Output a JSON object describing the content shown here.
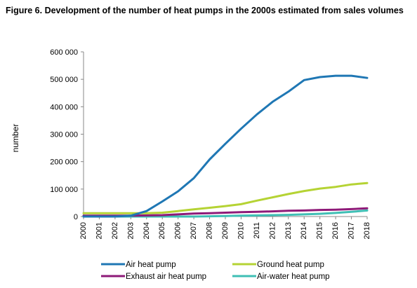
{
  "chart_data": {
    "type": "line",
    "title": "Figure 6. Development of the number of heat pumps in the 2000s estimated from sales volumes",
    "xlabel": "",
    "ylabel": "number",
    "ylim": [
      0,
      600000
    ],
    "yticks": [
      0,
      100000,
      200000,
      300000,
      400000,
      500000,
      600000
    ],
    "ytick_labels": [
      "0",
      "100 000",
      "200 000",
      "300 000",
      "400 000",
      "500 000",
      "600 000"
    ],
    "categories": [
      "2000",
      "2001",
      "2002",
      "2003",
      "2004",
      "2005",
      "2006",
      "2007",
      "2008",
      "2009",
      "2010",
      "2011",
      "2012",
      "2013",
      "2014",
      "2015",
      "2016",
      "2017",
      "2018"
    ],
    "grid": false,
    "legend_position": "bottom",
    "series": [
      {
        "name": "Air heat pump",
        "color": "#1f77b4",
        "values": [
          0,
          0,
          0,
          3000,
          20000,
          55000,
          92000,
          140000,
          208000,
          265000,
          320000,
          372000,
          418000,
          455000,
          497000,
          508000,
          513000,
          513000,
          505000
        ]
      },
      {
        "name": "Ground heat pump",
        "color": "#b5d334",
        "values": [
          12000,
          12000,
          12000,
          12000,
          12000,
          14000,
          20000,
          26000,
          32000,
          38000,
          45000,
          58000,
          70000,
          82000,
          93000,
          102000,
          108000,
          117000,
          122000
        ]
      },
      {
        "name": "Exhaust air heat pump",
        "color": "#8e1a78",
        "values": [
          3000,
          3000,
          3000,
          3000,
          4000,
          5000,
          8000,
          11000,
          12000,
          14000,
          16000,
          17000,
          19000,
          21000,
          22000,
          24000,
          25000,
          27000,
          30000
        ]
      },
      {
        "name": "Air-water heat pump",
        "color": "#3fbfb5",
        "values": [
          0,
          0,
          0,
          0,
          0,
          0,
          0,
          0,
          1000,
          2000,
          3000,
          4000,
          5000,
          6000,
          8000,
          10000,
          13000,
          17000,
          22000
        ]
      }
    ]
  }
}
